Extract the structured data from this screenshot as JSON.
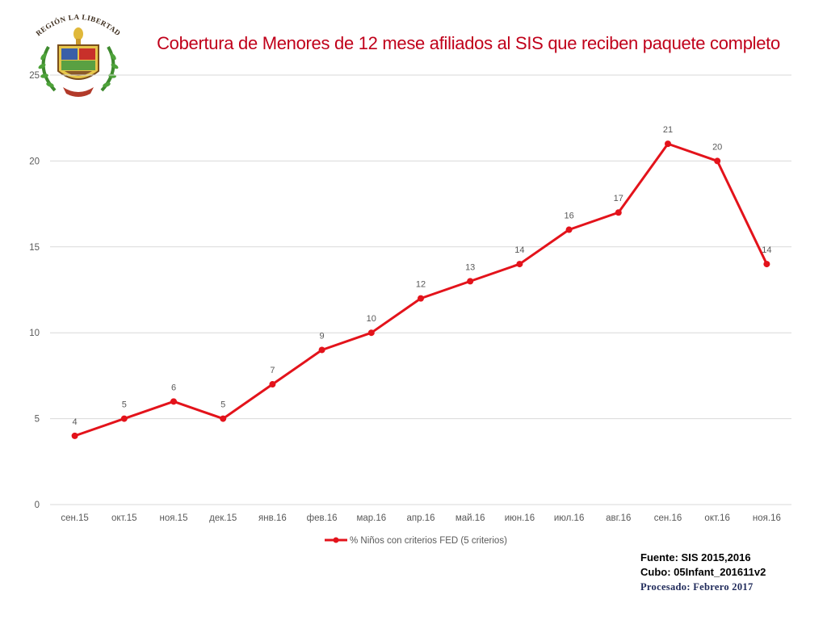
{
  "chart_data": {
    "type": "line",
    "title": "Cobertura de Menores de 12 mese afiliados al SIS que reciben paquete completo",
    "categories": [
      "сен.15",
      "окт.15",
      "ноя.15",
      "дек.15",
      "янв.16",
      "фев.16",
      "мар.16",
      "апр.16",
      "май.16",
      "июн.16",
      "июл.16",
      "авг.16",
      "сен.16",
      "окт.16",
      "ноя.16"
    ],
    "series": [
      {
        "name": "% Niños con criterios FED (5 criterios)",
        "values": [
          4,
          5,
          6,
          5,
          7,
          9,
          10,
          12,
          13,
          14,
          16,
          17,
          21,
          20,
          14
        ],
        "color": "#e3131b"
      }
    ],
    "y_ticks": [
      "0",
      "5",
      "10",
      "15",
      "20",
      "25"
    ],
    "ylim": [
      0,
      25
    ],
    "grid": true,
    "legend_position": "bottom",
    "data_labels": true
  },
  "logo": {
    "arc_text": "REGIÓN LA LIBERTAD"
  },
  "source": {
    "line1": "Fuente: SIS 2015,2016",
    "line2": "Cubo: 05Infant_201611v2",
    "line3": "Procesado: Febrero 2017"
  },
  "colors": {
    "title": "#c0001a",
    "series": "#e3131b",
    "grid": "#d9d9d9",
    "axis_text": "#595959"
  }
}
